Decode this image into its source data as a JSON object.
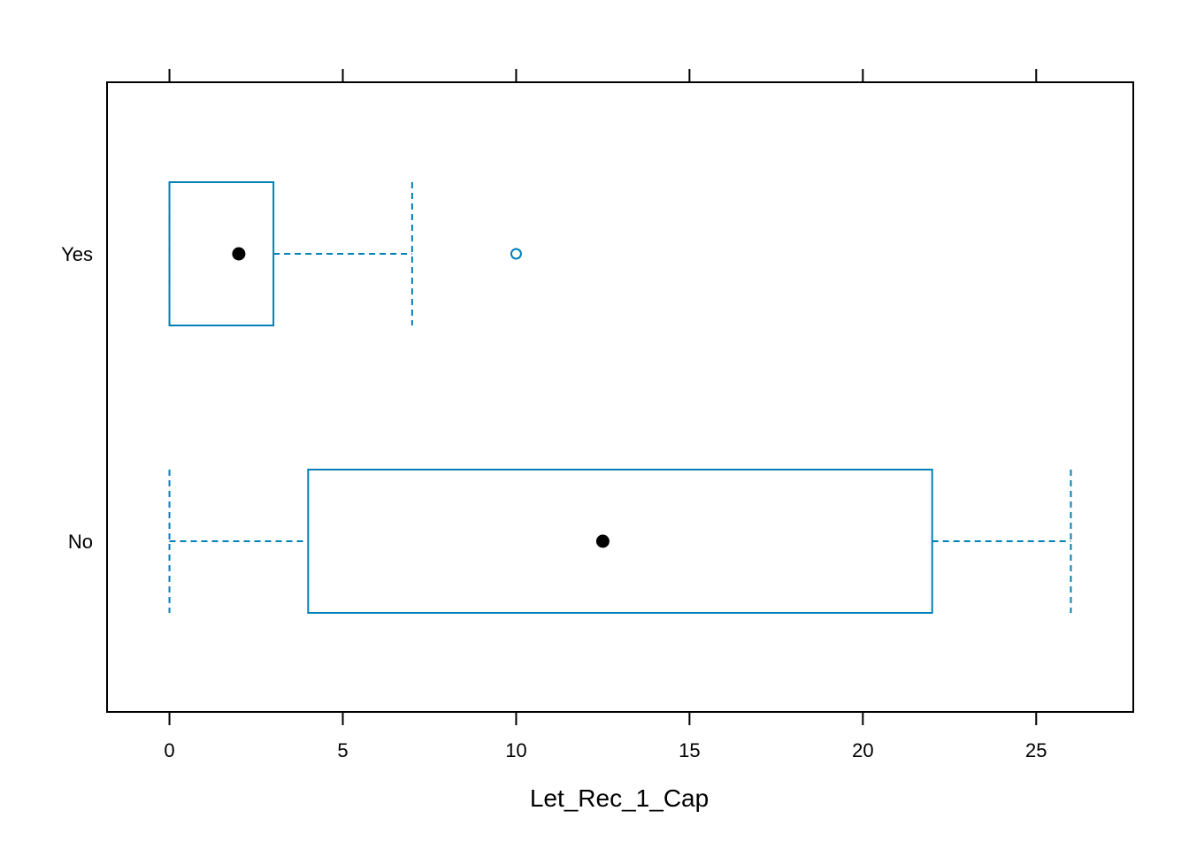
{
  "chart_data": {
    "type": "boxplot",
    "orientation": "horizontal",
    "xlabel": "Let_Rec_1_Cap",
    "ylabel": "",
    "xlim": [
      -1.8,
      27.8
    ],
    "xticks": [
      0,
      5,
      10,
      15,
      20,
      25
    ],
    "xtick_labels": [
      "0",
      "5",
      "10",
      "15",
      "20",
      "25"
    ],
    "categories": [
      "No",
      "Yes"
    ],
    "boxes": [
      {
        "category": "No",
        "whisker_low": 0,
        "q1": 4,
        "median": 12.5,
        "q3": 22,
        "whisker_high": 26,
        "outliers": []
      },
      {
        "category": "Yes",
        "whisker_low": 0,
        "q1": 0,
        "median": 2,
        "q3": 3,
        "whisker_high": 7,
        "outliers": [
          10
        ]
      }
    ],
    "grid": false,
    "legend": "none",
    "colors": {
      "box": "#0080b8",
      "median_dot": "#000000",
      "frame": "#000000"
    }
  }
}
